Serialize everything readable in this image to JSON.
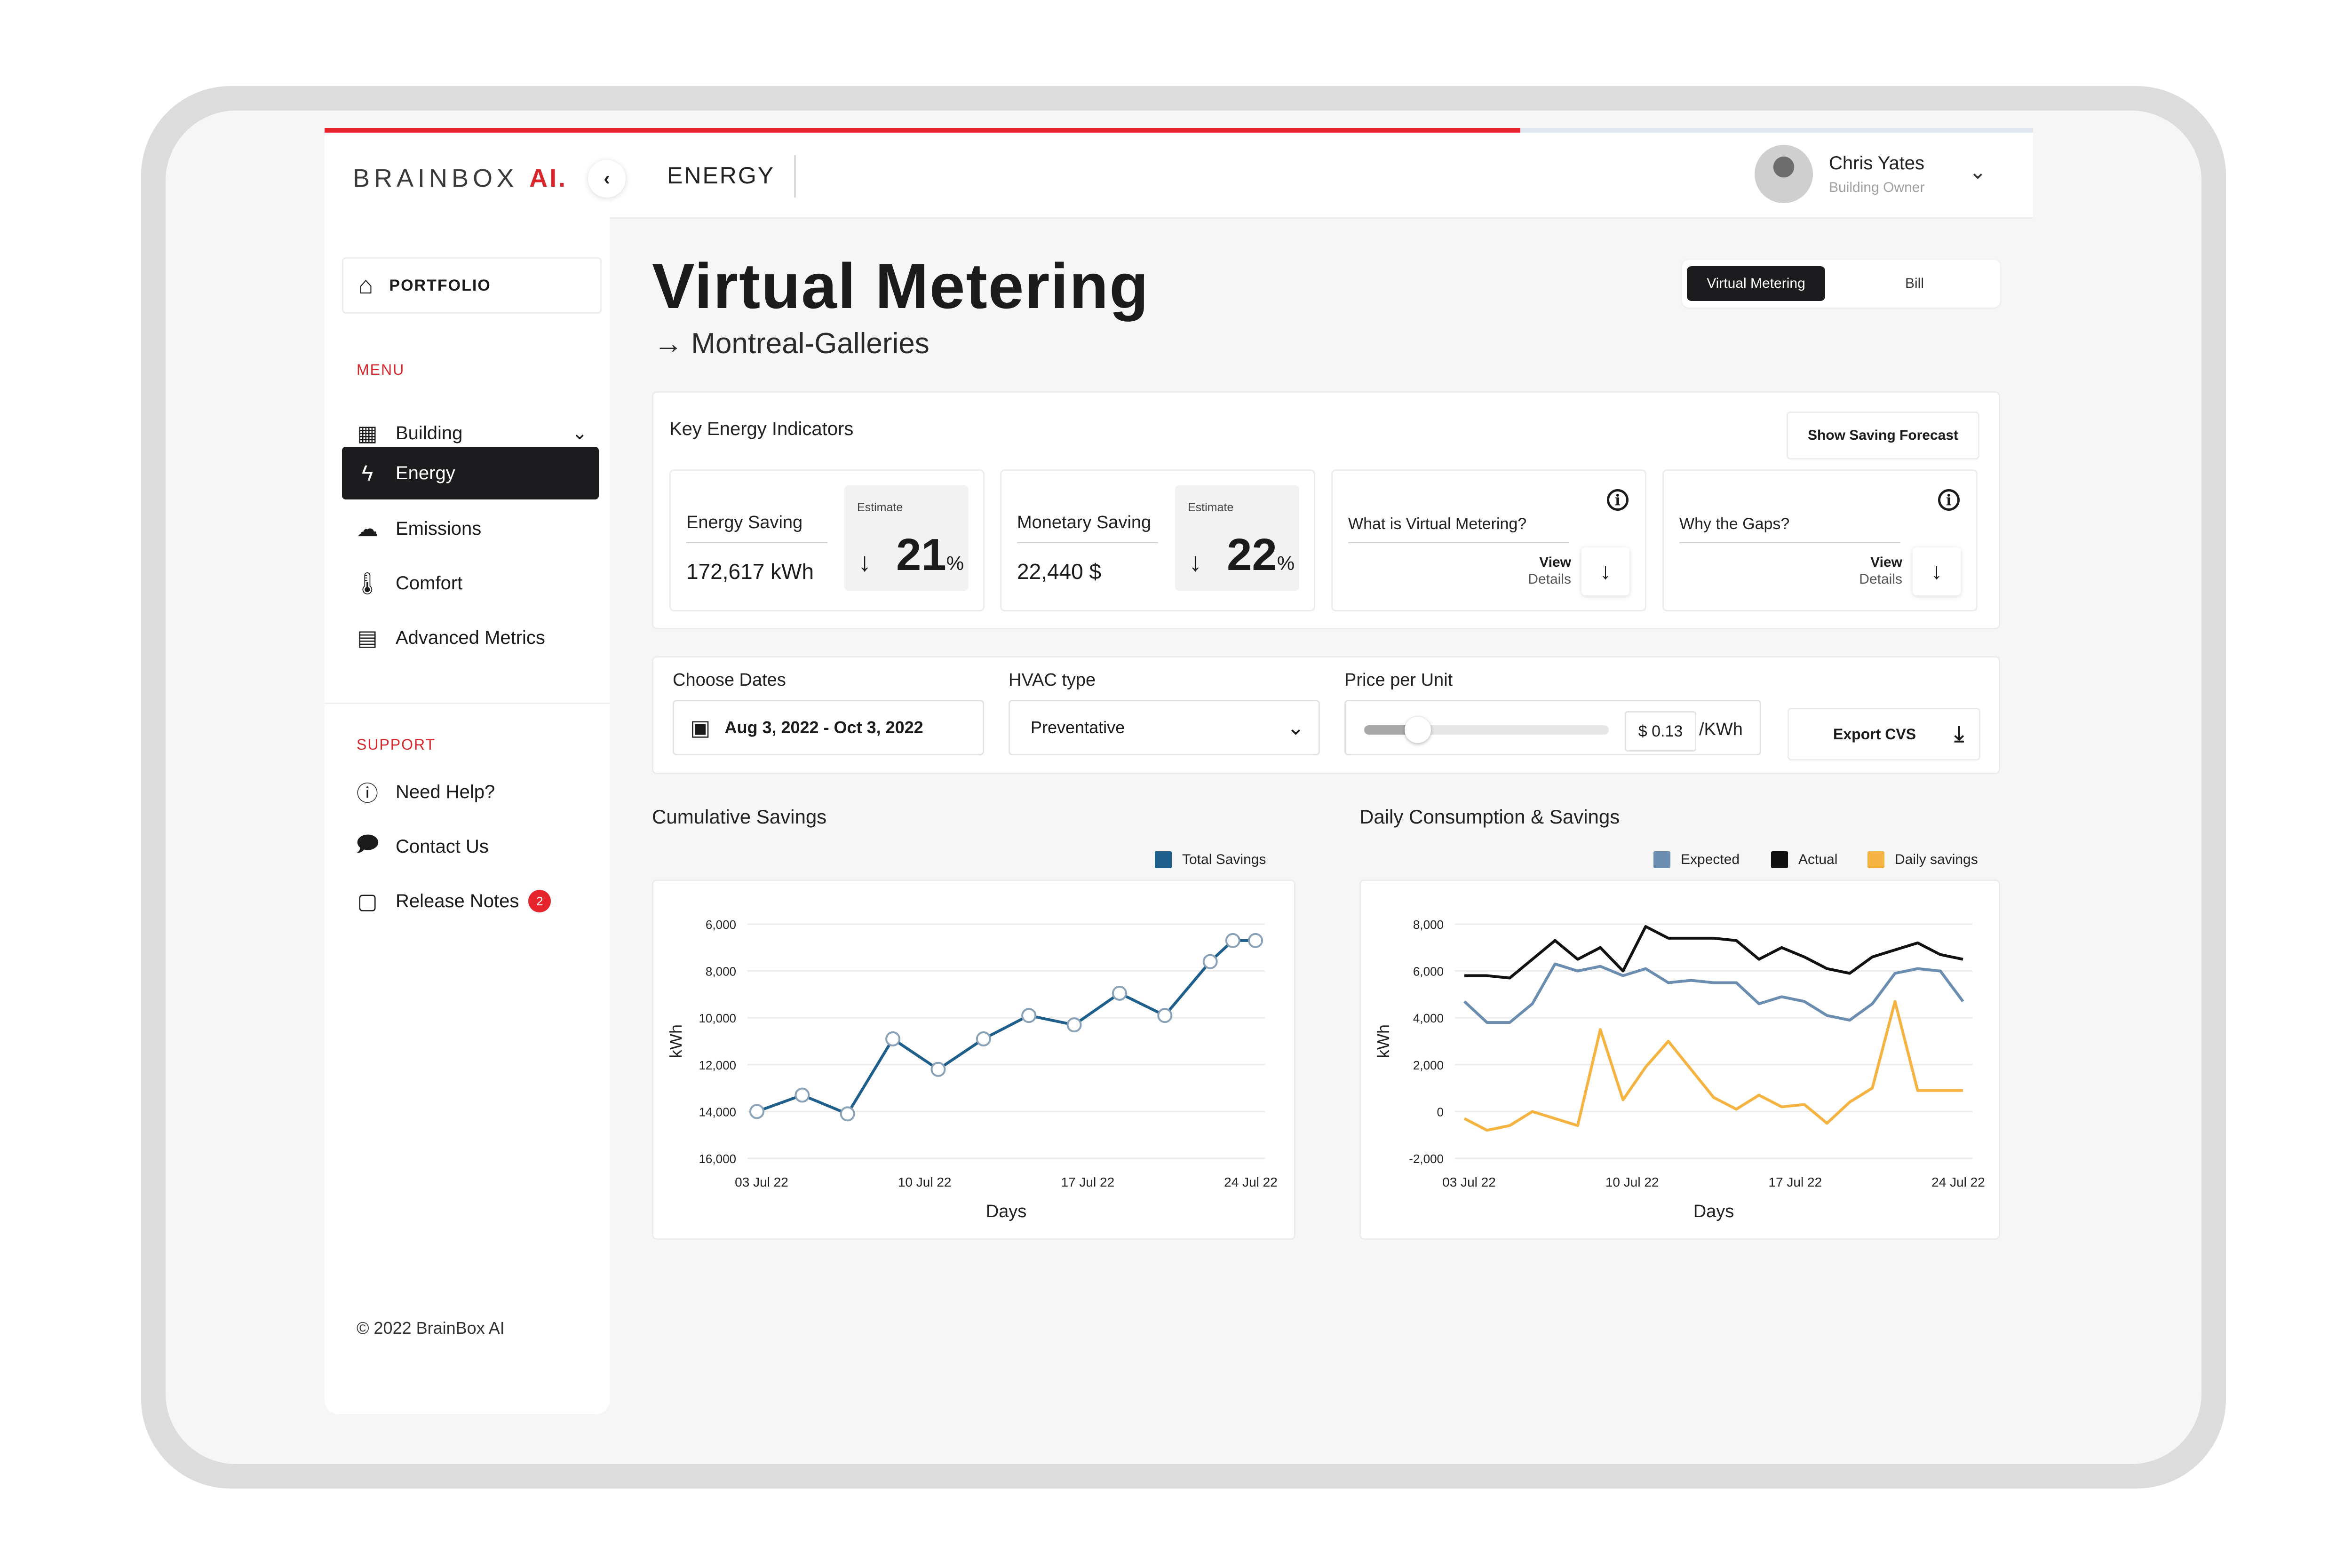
{
  "app": {
    "brand": "BRAINBOX",
    "brand_suffix": "AI.",
    "section": "ENERGY",
    "progress_percent": 70
  },
  "user": {
    "name": "Chris Yates",
    "role": "Building Owner"
  },
  "sidebar": {
    "portfolio_label": "PORTFOLIO",
    "menu_label": "MENU",
    "items": [
      {
        "label": "Building",
        "icon": "building-icon",
        "active": false,
        "expandable": true
      },
      {
        "label": "Energy",
        "icon": "lightning-icon",
        "active": true
      },
      {
        "label": "Emissions",
        "icon": "cloud-icon",
        "active": false
      },
      {
        "label": "Comfort",
        "icon": "thermometer-icon",
        "active": false
      },
      {
        "label": "Advanced Metrics",
        "icon": "chart-icon",
        "active": false
      }
    ],
    "support_label": "SUPPORT",
    "support_items": [
      {
        "label": "Need Help?",
        "icon": "question-icon"
      },
      {
        "label": "Contact Us",
        "icon": "chat-alert-icon"
      },
      {
        "label": "Release Notes",
        "icon": "notes-icon",
        "badge": "2"
      }
    ],
    "copyright": "© 2022 BrainBox AI"
  },
  "page": {
    "title": "Virtual Metering",
    "subtitle": "Montreal-Galleries",
    "view_toggle": {
      "active": "Virtual Metering",
      "other": "Bill"
    }
  },
  "kei": {
    "title": "Key Energy Indicators",
    "forecast_button": "Show Saving Forecast",
    "cards": [
      {
        "label": "Energy Saving",
        "value": "172,617 kWh",
        "estimate_label": "Estimate",
        "estimate_value": "21",
        "estimate_unit": "%"
      },
      {
        "label": "Monetary Saving",
        "value": "22,440 $",
        "estimate_label": "Estimate",
        "estimate_value": "22",
        "estimate_unit": "%"
      }
    ],
    "info_cards": [
      {
        "label": "What is Virtual Metering?",
        "view": "View",
        "details": "Details"
      },
      {
        "label": "Why the Gaps?",
        "view": "View",
        "details": "Details"
      }
    ]
  },
  "filters": {
    "dates_label": "Choose Dates",
    "dates_value": "Aug 3, 2022 - Oct 3, 2022",
    "hvac_label": "HVAC type",
    "hvac_value": "Preventative",
    "price_label": "Price per Unit",
    "price_value": "$ 0.13",
    "price_unit": "/KWh",
    "price_slider_fraction": 0.22,
    "export_label": "Export CVS"
  },
  "chart_data": [
    {
      "type": "line",
      "title": "Cumulative Savings",
      "xlabel": "Days",
      "ylabel": "kWh",
      "x_ticks": [
        "03 Jul 22",
        "10 Jul 22",
        "17 Jul 22",
        "24 Jul 22"
      ],
      "y_ticks": [
        "6,000",
        "8,000",
        "10,000",
        "12,000",
        "14,000",
        "16,000"
      ],
      "legend": "top-right",
      "series": [
        {
          "name": "Total Savings",
          "color": "#1f5f8b",
          "x": [
            0,
            1,
            2,
            3,
            4,
            5,
            6,
            7,
            8,
            9,
            10,
            10.5,
            11
          ],
          "values": [
            14000,
            13300,
            14100,
            10900,
            12200,
            10900,
            9900,
            10300,
            8950,
            9900,
            7600,
            6700,
            6700
          ]
        }
      ]
    },
    {
      "type": "line",
      "title": "Daily Consumption & Savings",
      "xlabel": "Days",
      "ylabel": "kWh",
      "x_ticks": [
        "03 Jul 22",
        "10 Jul 22",
        "17 Jul 22",
        "24 Jul 22"
      ],
      "y_ticks": [
        "8,000",
        "6,000",
        "4,000",
        "2,000",
        "0",
        "-2,000"
      ],
      "ylim": [
        -2000,
        8000
      ],
      "legend": "top-right",
      "series": [
        {
          "name": "Expected",
          "color": "#6b8db0",
          "values": [
            4700,
            3800,
            3800,
            4600,
            6300,
            6000,
            6200,
            5800,
            6100,
            5500,
            5600,
            5500,
            5500,
            4600,
            4900,
            4700,
            4100,
            3900,
            4600,
            5900,
            6100,
            6000,
            4700
          ]
        },
        {
          "name": "Actual",
          "color": "#111111",
          "values": [
            5800,
            5800,
            5700,
            6500,
            7300,
            6500,
            7000,
            6000,
            7900,
            7400,
            7400,
            7400,
            7300,
            6500,
            7000,
            6600,
            6100,
            5900,
            6600,
            6900,
            7200,
            6700,
            6500
          ]
        },
        {
          "name": "Daily savings",
          "color": "#f5b342",
          "values": [
            -300,
            -800,
            -600,
            0,
            -300,
            -600,
            3500,
            500,
            1900,
            3000,
            1800,
            600,
            100,
            700,
            200,
            300,
            -500,
            400,
            1000,
            4700,
            900,
            900,
            900
          ]
        }
      ]
    }
  ]
}
